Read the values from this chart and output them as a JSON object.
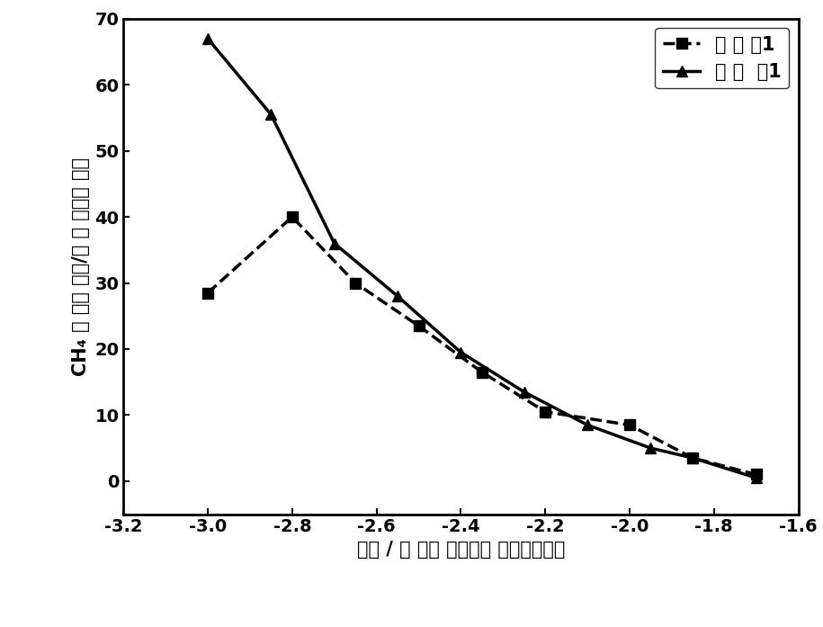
{
  "series1_label": "比 较 例1",
  "series2_label": "实 施  例1",
  "series1_x": [
    -3.0,
    -2.8,
    -2.65,
    -2.5,
    -2.35,
    -2.2,
    -2.0,
    -1.85,
    -1.7
  ],
  "series1_y": [
    28.5,
    40.0,
    30.0,
    23.5,
    16.5,
    10.5,
    8.5,
    3.5,
    1.0
  ],
  "series2_x": [
    -3.0,
    -2.85,
    -2.7,
    -2.55,
    -2.4,
    -2.25,
    -2.1,
    -1.95,
    -1.85,
    -1.7
  ],
  "series2_y": [
    67.0,
    55.5,
    36.0,
    28.0,
    19.5,
    13.5,
    8.5,
    5.0,
    3.5,
    0.5
  ],
  "xlabel": "电位 / 伏 特（ 相对于饱 和甘汞电极）",
  "ylabel_chars": [
    "CH₄",
    " 分",
    " 电流",
    " 密度",
    "/毫 安",
    " 每平方",
    " 厘米"
  ],
  "xlim": [
    -3.2,
    -1.6
  ],
  "ylim": [
    -5,
    70
  ],
  "xticks": [
    -3.2,
    -3.0,
    -2.8,
    -2.6,
    -2.4,
    -2.2,
    -2.0,
    -1.8,
    -1.6
  ],
  "yticks": [
    0,
    10,
    20,
    30,
    40,
    50,
    60,
    70
  ],
  "color": "#000000",
  "background": "#ffffff",
  "linewidth": 2.5,
  "markersize": 9,
  "label_fontsize": 15,
  "tick_fontsize": 14
}
